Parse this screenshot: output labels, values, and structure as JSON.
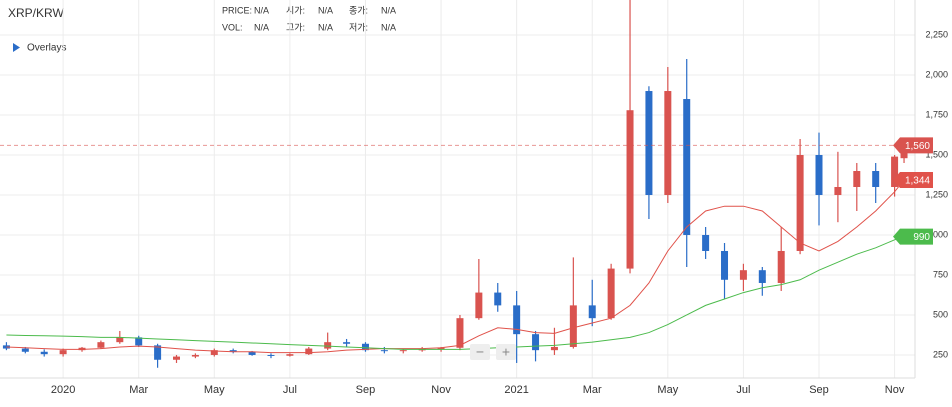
{
  "header": {
    "symbol": "XRP/KRW",
    "overlays": "Overlays",
    "rows": [
      [
        {
          "label": "PRICE:",
          "value": "N/A"
        },
        {
          "label": "시가:",
          "value": "N/A"
        },
        {
          "label": "종가:",
          "value": "N/A"
        }
      ],
      [
        {
          "label": "VOL:",
          "value": "N/A"
        },
        {
          "label": "고가:",
          "value": "N/A"
        },
        {
          "label": "저가:",
          "value": "N/A"
        }
      ]
    ],
    "zoom": [
      "−",
      "+"
    ]
  },
  "chart_data": {
    "type": "candlestick",
    "up_color": "#d9534f",
    "down_color": "#2a6dc8",
    "grid": true,
    "x": [
      -1.5,
      -1,
      -0.5,
      0,
      0.5,
      1,
      1.5,
      2,
      2.5,
      3,
      3.5,
      4,
      4.5,
      5,
      5.5,
      6,
      6.5,
      7,
      7.5,
      8,
      8.5,
      9,
      9.5,
      10,
      10.5,
      11,
      11.5,
      12,
      12.5,
      13,
      13.5,
      14,
      14.5,
      15,
      15.5,
      16,
      16.5,
      17,
      17.5,
      18,
      18.5,
      19,
      19.5,
      20,
      20.5,
      21,
      21.5,
      22,
      22.25
    ],
    "open": [
      310,
      290,
      270,
      255,
      280,
      295,
      330,
      360,
      310,
      220,
      240,
      250,
      280,
      270,
      250,
      245,
      255,
      290,
      330,
      320,
      280,
      275,
      280,
      285,
      295,
      480,
      640,
      560,
      380,
      280,
      300,
      560,
      480,
      790,
      1900,
      1250,
      1850,
      1000,
      900,
      720,
      780,
      700,
      900,
      1500,
      1250,
      1300,
      1400,
      1300,
      1480
    ],
    "high": [
      330,
      300,
      285,
      290,
      300,
      340,
      400,
      370,
      320,
      250,
      260,
      290,
      290,
      275,
      260,
      260,
      300,
      390,
      350,
      330,
      300,
      290,
      300,
      300,
      500,
      850,
      700,
      650,
      400,
      420,
      860,
      720,
      820,
      2470,
      1930,
      2050,
      2100,
      1050,
      950,
      820,
      800,
      1050,
      1600,
      1640,
      1520,
      1450,
      1450,
      1500,
      1600
    ],
    "low": [
      280,
      260,
      240,
      240,
      270,
      290,
      320,
      300,
      170,
      200,
      230,
      240,
      260,
      245,
      230,
      240,
      250,
      280,
      300,
      270,
      260,
      260,
      270,
      270,
      280,
      470,
      520,
      200,
      210,
      250,
      290,
      430,
      470,
      760,
      1100,
      1200,
      800,
      850,
      600,
      650,
      620,
      650,
      880,
      1060,
      1080,
      1150,
      1200,
      1240,
      1450
    ],
    "close": [
      290,
      270,
      255,
      280,
      295,
      330,
      360,
      310,
      220,
      240,
      250,
      280,
      270,
      250,
      245,
      255,
      290,
      330,
      320,
      280,
      275,
      280,
      285,
      295,
      480,
      640,
      560,
      380,
      280,
      300,
      560,
      480,
      790,
      1780,
      1250,
      1900,
      1000,
      900,
      720,
      780,
      700,
      900,
      1500,
      1250,
      1300,
      1400,
      1300,
      1490,
      1560
    ],
    "last_price": {
      "value": 1560,
      "label": "1,560",
      "color": "#d9534f"
    },
    "series": [
      {
        "color": "#e0524a",
        "values": [
          300,
          295,
          290,
          285,
          285,
          290,
          300,
          305,
          300,
          290,
          280,
          275,
          270,
          270,
          265,
          265,
          265,
          270,
          280,
          285,
          290,
          290,
          290,
          295,
          310,
          370,
          420,
          410,
          390,
          385,
          420,
          450,
          480,
          560,
          700,
          900,
          1050,
          1150,
          1180,
          1180,
          1150,
          1050,
          950,
          900,
          960,
          1050,
          1150,
          1270,
          1344
        ],
        "end_label": "1,344"
      },
      {
        "color": "#4cbb4c",
        "values": [
          375,
          372,
          370,
          368,
          365,
          360,
          360,
          355,
          350,
          345,
          340,
          335,
          330,
          325,
          320,
          315,
          310,
          305,
          300,
          295,
          290,
          285,
          285,
          285,
          285,
          290,
          295,
          300,
          305,
          310,
          320,
          330,
          345,
          360,
          390,
          440,
          500,
          560,
          600,
          640,
          670,
          690,
          720,
          780,
          830,
          880,
          920,
          970,
          990
        ],
        "end_label": "990"
      }
    ],
    "xlim": [
      -1.67,
      22.54
    ],
    "xticks": [
      {
        "value": 0,
        "label": "2020"
      },
      {
        "value": 2,
        "label": "Mar"
      },
      {
        "value": 4,
        "label": "May"
      },
      {
        "value": 6,
        "label": "Jul"
      },
      {
        "value": 8,
        "label": "Sep"
      },
      {
        "value": 10,
        "label": "Nov"
      },
      {
        "value": 12,
        "label": "2021"
      },
      {
        "value": 14,
        "label": "Mar"
      },
      {
        "value": 16,
        "label": "May"
      },
      {
        "value": 18,
        "label": "Jul"
      },
      {
        "value": 20,
        "label": "Sep"
      },
      {
        "value": 22,
        "label": "Nov"
      }
    ],
    "ylim": [
      106,
      2469
    ],
    "yticks": [
      250,
      500,
      750,
      {
        "value": 1000,
        "label": "1,000"
      },
      {
        "value": 1250,
        "label": "1,250"
      },
      {
        "value": 1500,
        "label": "1,500"
      },
      {
        "value": 1750,
        "label": "1,750"
      },
      {
        "value": 2000,
        "label": "2,000"
      },
      {
        "value": 2250,
        "label": "2,250"
      }
    ]
  }
}
